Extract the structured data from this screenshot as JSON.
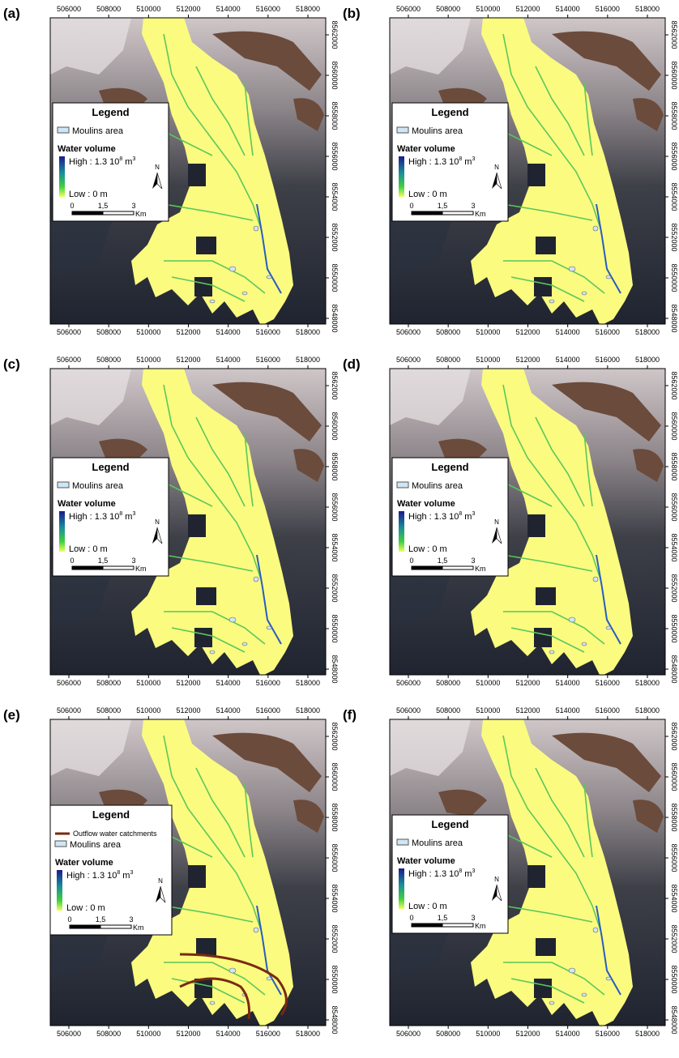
{
  "panels": [
    {
      "label": "(a)",
      "xticks": [
        506000,
        508000,
        510000,
        512000,
        514000,
        516000,
        518000
      ],
      "yticks": [
        8548000,
        8550000,
        8552000,
        8554000,
        8556000,
        8558000,
        8560000,
        8562000
      ],
      "legend": {
        "title": "Legend",
        "moulins": "Moulins area",
        "water_volume": "Water volume",
        "high": "High : 1.3 10",
        "high_exp": "8",
        "high_unit": "m",
        "high_unit_exp": "3",
        "low": "Low : 0 m",
        "north": "N",
        "scale": [
          "0",
          "1,5",
          "3"
        ],
        "scale_unit": "Km"
      }
    },
    {
      "label": "(b)",
      "xticks": [
        506000,
        508000,
        510000,
        512000,
        514000,
        516000,
        518000
      ],
      "yticks": [
        8548000,
        8550000,
        8552000,
        8554000,
        8556000,
        8558000,
        8560000,
        8562000
      ],
      "legend": {
        "title": "Legend",
        "moulins": "Moulins area",
        "water_volume": "Water volume",
        "high": "High : 1.3 10",
        "high_exp": "8",
        "high_unit": "m",
        "high_unit_exp": "3",
        "low": "Low : 0 m",
        "north": "N",
        "scale": [
          "0",
          "1,5",
          "3"
        ],
        "scale_unit": "Km"
      }
    },
    {
      "label": "(c)",
      "xticks": [
        506000,
        508000,
        510000,
        512000,
        514000,
        516000,
        518000
      ],
      "yticks": [
        8548000,
        8550000,
        8552000,
        8554000,
        8556000,
        8558000,
        8560000,
        8562000
      ],
      "legend": {
        "title": "Legend",
        "moulins": "Moulins area",
        "water_volume": "Water volume",
        "high": "High : 1.3 10",
        "high_exp": "8",
        "high_unit": "m",
        "high_unit_exp": "3",
        "low": "Low : 0 m",
        "north": "N",
        "scale": [
          "0",
          "1,5",
          "3"
        ],
        "scale_unit": "Km"
      }
    },
    {
      "label": "(d)",
      "xticks": [
        506000,
        508000,
        510000,
        512000,
        514000,
        516000,
        518000
      ],
      "yticks": [
        8548000,
        8550000,
        8552000,
        8554000,
        8556000,
        8558000,
        8560000,
        8562000
      ],
      "legend": {
        "title": "Legend",
        "moulins": "Moulins area",
        "water_volume": "Water volume",
        "high": "High : 1.3 10",
        "high_exp": "8",
        "high_unit": "m",
        "high_unit_exp": "3",
        "low": "Low : 0 m",
        "north": "N",
        "scale": [
          "0",
          "1,5",
          "3"
        ],
        "scale_unit": "Km"
      }
    },
    {
      "label": "(e)",
      "xticks": [
        506000,
        508000,
        510000,
        512000,
        514000,
        516000,
        518000
      ],
      "yticks": [
        8548000,
        8550000,
        8552000,
        8554000,
        8556000,
        8558000,
        8560000,
        8562000
      ],
      "legend": {
        "title": "Legend",
        "outflow": "Outflow water catchments",
        "moulins": "Moulins area",
        "water_volume": "Water volume",
        "high": "High : 1.3 10",
        "high_exp": "8",
        "high_unit": "m",
        "high_unit_exp": "3",
        "low": "Low : 0 m",
        "north": "N",
        "scale": [
          "0",
          "1,5",
          "3"
        ],
        "scale_unit": "Km"
      }
    },
    {
      "label": "(f)",
      "xticks": [
        506000,
        508000,
        510000,
        512000,
        514000,
        516000,
        518000
      ],
      "yticks": [
        8548000,
        8550000,
        8552000,
        8554000,
        8556000,
        8558000,
        8560000,
        8562000
      ],
      "legend": {
        "title": "Legend",
        "moulins": "Moulins area",
        "water_volume": "Water volume",
        "high": "High : 1.3 10",
        "high_exp": "8",
        "high_unit": "m",
        "high_unit_exp": "3",
        "low": "Low : 0 m",
        "north": "N",
        "scale": [
          "0",
          "1,5",
          "3"
        ],
        "scale_unit": "Km"
      }
    }
  ]
}
